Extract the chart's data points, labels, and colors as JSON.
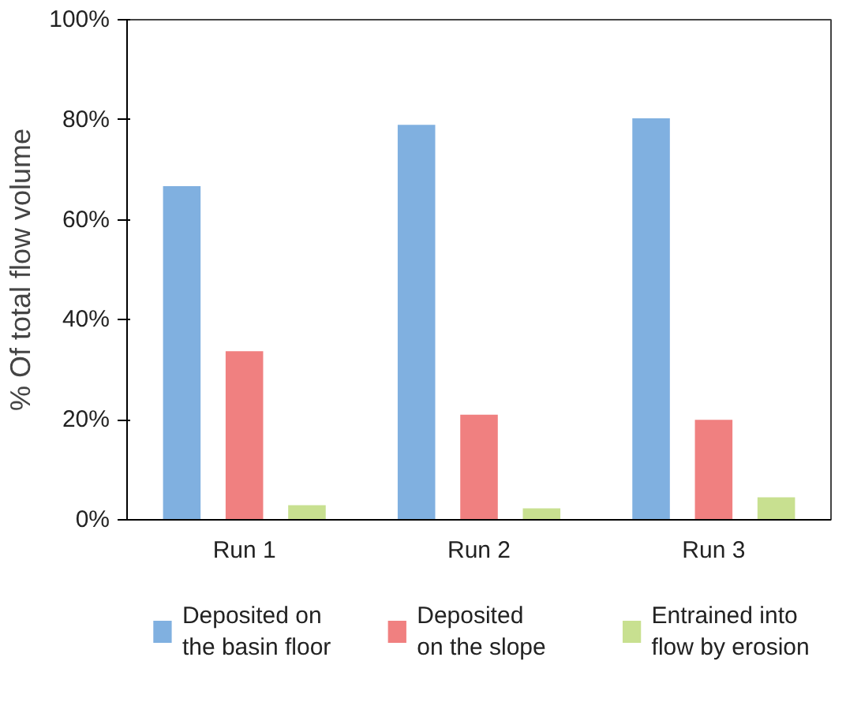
{
  "chart_data": {
    "type": "bar",
    "ylabel": "% Of total flow volume",
    "categories": [
      "Run 1",
      "Run 2",
      "Run 3"
    ],
    "series": [
      {
        "name": "Deposited on\nthe basin floor",
        "color": "#80b0e0",
        "values": [
          66.7,
          79,
          80.3
        ]
      },
      {
        "name": "Deposited\non the slope",
        "color": "#f08080",
        "values": [
          33.7,
          21,
          20
        ]
      },
      {
        "name": "Entrained  into\nflow by erosion",
        "color": "#c8e090",
        "values": [
          2.9,
          2.3,
          4.5
        ]
      }
    ],
    "ylim": [
      0,
      100
    ],
    "yticks": [
      {
        "value": 0,
        "label": "0%"
      },
      {
        "value": 20,
        "label": "20%"
      },
      {
        "value": 40,
        "label": "40%"
      },
      {
        "value": 60,
        "label": "60%"
      },
      {
        "value": 80,
        "label": "80%"
      },
      {
        "value": 100,
        "label": "100%"
      }
    ],
    "grid": false,
    "legend": "bottom"
  }
}
